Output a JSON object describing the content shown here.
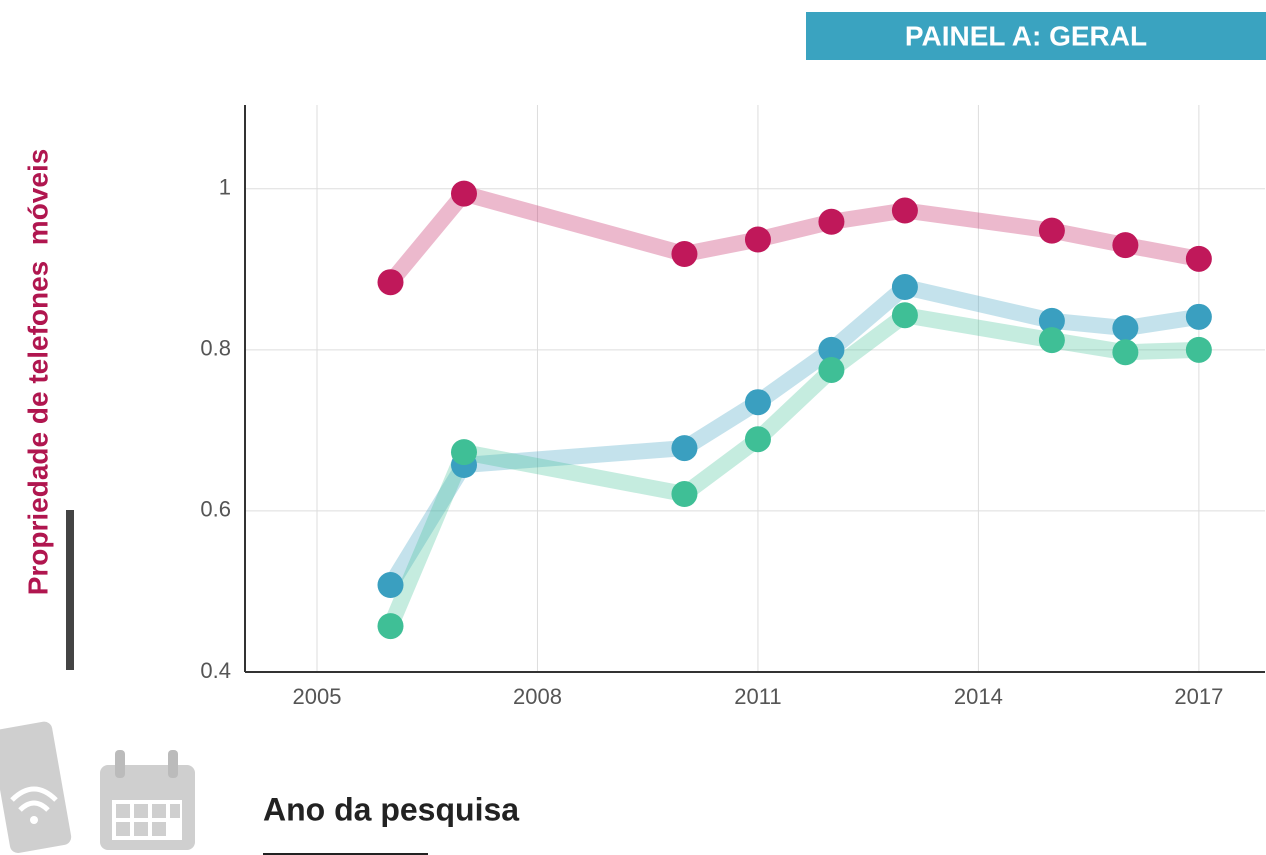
{
  "chart_data": {
    "type": "line",
    "title": "PAINEL A: GERAL",
    "xlabel": "Ano da pesquisa",
    "ylabel": "Propriedade de telefones  móveis",
    "x": [
      2006,
      2007,
      2010,
      2011,
      2012,
      2013,
      2015,
      2016,
      2017
    ],
    "series": [
      {
        "color": "#c0185a",
        "values": [
          0.884,
          0.994,
          0.919,
          0.937,
          0.959,
          0.973,
          0.948,
          0.93,
          0.913
        ]
      },
      {
        "color": "#3a9fc0",
        "values": [
          0.508,
          0.657,
          0.678,
          0.735,
          0.8,
          0.878,
          0.836,
          0.827,
          0.841
        ]
      },
      {
        "color": "#3fbf96",
        "values": [
          0.457,
          0.673,
          0.621,
          0.689,
          0.775,
          0.843,
          0.812,
          0.797,
          0.8
        ]
      }
    ],
    "xlim": [
      2004.02,
      2017.9
    ],
    "xticks": [
      2005,
      2008,
      2011,
      2014,
      2017
    ],
    "ylim": [
      0.4,
      1.104
    ],
    "yticks": [
      0.4,
      0.6,
      0.8,
      1
    ],
    "grid": true
  }
}
